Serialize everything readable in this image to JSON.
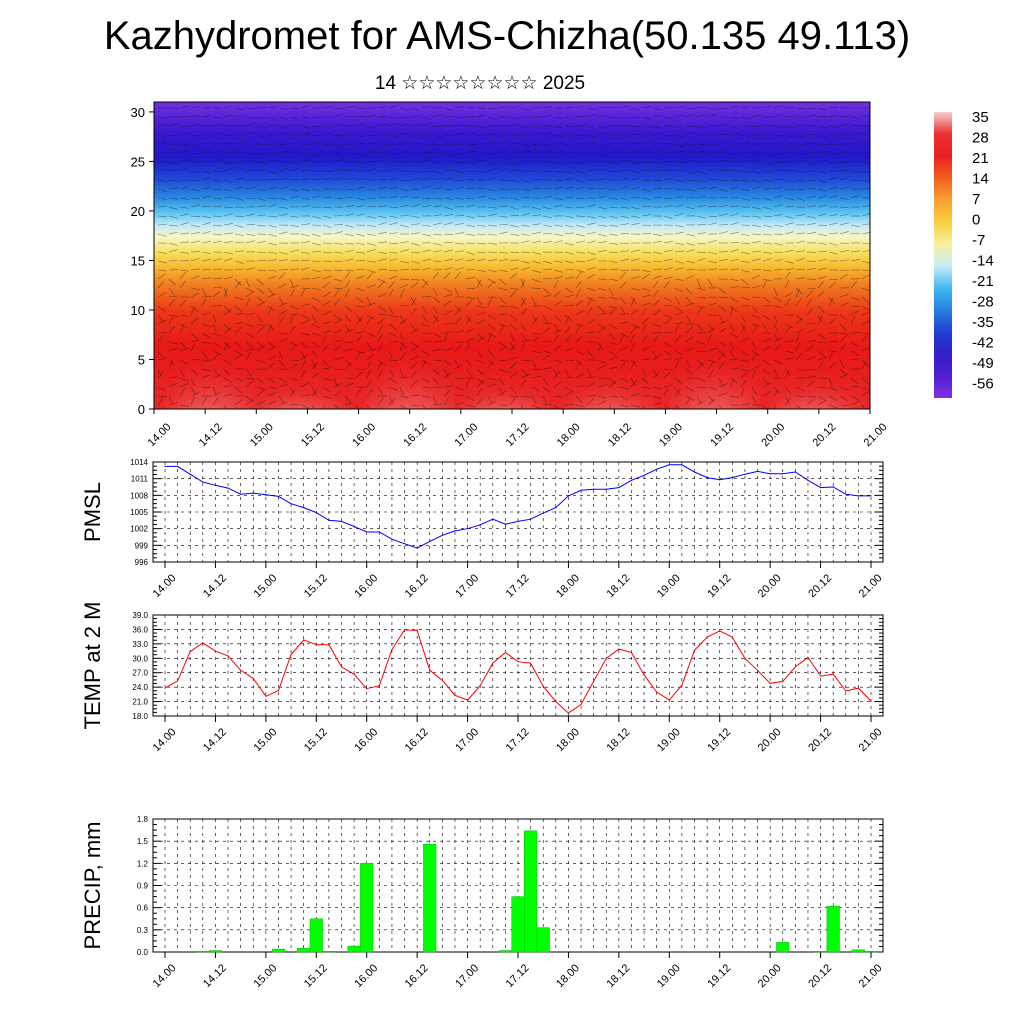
{
  "title": "Kazhydromet for AMS-Chizha(50.135 49.113)",
  "subtitle": "14 ☆☆☆☆☆☆☆☆ 2025",
  "x_tick_labels": [
    "14.00",
    "14.12",
    "15.00",
    "15.12",
    "16.00",
    "16.12",
    "17.00",
    "17.12",
    "18.00",
    "18.12",
    "19.00",
    "19.12",
    "20.00",
    "20.12",
    "21.00"
  ],
  "chart_data": [
    {
      "type": "heatmap",
      "name": "cross-section",
      "ylabel": "",
      "ylim": [
        0,
        31
      ],
      "yticks": [
        0,
        5,
        10,
        15,
        20,
        25,
        30
      ],
      "x_categories": [
        "14.00",
        "14.12",
        "15.00",
        "15.12",
        "16.00",
        "16.12",
        "17.00",
        "17.12",
        "18.00",
        "18.12",
        "19.00",
        "19.12",
        "20.00",
        "20.12",
        "21.00"
      ],
      "colorbar": {
        "labels": [
          "35",
          "28",
          "21",
          "14",
          "7",
          "0",
          "-7",
          "-14",
          "-21",
          "-28",
          "-35",
          "-42",
          "-49",
          "-56"
        ],
        "colors": [
          "#f8d0d0",
          "#e83030",
          "#e82020",
          "#f06020",
          "#f8a030",
          "#f8d040",
          "#f8f0a0",
          "#c8ecf8",
          "#40b8f0",
          "#2880e0",
          "#2040d0",
          "#3020c8",
          "#5020d0",
          "#8030e0"
        ]
      }
    },
    {
      "type": "line",
      "name": "PMSL",
      "ylabel": "PMSL",
      "ylim": [
        996,
        1014
      ],
      "yticks": [
        "996",
        "999",
        "1002",
        "1005",
        "1008",
        "1011",
        "1014"
      ],
      "color": "#0000ff",
      "x": [
        "14.00",
        "14.03",
        "14.06",
        "14.09",
        "14.12",
        "14.15",
        "14.18",
        "14.21",
        "15.00",
        "15.03",
        "15.06",
        "15.09",
        "15.12",
        "15.15",
        "15.18",
        "15.21",
        "16.00",
        "16.03",
        "16.06",
        "16.09",
        "16.12",
        "16.15",
        "16.18",
        "16.21",
        "17.00",
        "17.03",
        "17.06",
        "17.09",
        "17.12",
        "17.15",
        "17.18",
        "17.21",
        "18.00",
        "18.03",
        "18.06",
        "18.09",
        "18.12",
        "18.15",
        "18.18",
        "18.21",
        "19.00",
        "19.03",
        "19.06",
        "19.09",
        "19.12",
        "19.15",
        "19.18",
        "19.21",
        "20.00",
        "20.03",
        "20.06",
        "20.09",
        "20.12",
        "20.15",
        "20.18",
        "20.21",
        "21.00"
      ],
      "values": [
        1013.2,
        1013.2,
        1011.8,
        1010.4,
        1009.8,
        1009.3,
        1008.2,
        1008.4,
        1008.1,
        1007.8,
        1006.5,
        1005.8,
        1004.9,
        1003.5,
        1003.3,
        1002.4,
        1001.4,
        1001.4,
        1000.1,
        999.3,
        998.5,
        999.7,
        1000.8,
        1001.6,
        1002.0,
        1002.7,
        1003.7,
        1002.8,
        1003.3,
        1003.7,
        1004.8,
        1005.8,
        1007.9,
        1008.9,
        1009.1,
        1009.1,
        1009.4,
        1010.7,
        1011.6,
        1012.7,
        1013.5,
        1013.5,
        1012.2,
        1011.2,
        1010.8,
        1011.2,
        1011.8,
        1012.3,
        1011.9,
        1011.9,
        1012.2,
        1010.7,
        1009.4,
        1009.5,
        1008.2,
        1007.9,
        1007.9
      ]
    },
    {
      "type": "line",
      "name": "TEMP at 2 M",
      "ylabel": "TEMP at 2 M",
      "ylim": [
        18,
        39
      ],
      "yticks": [
        "18.0",
        "21.0",
        "24.0",
        "27.0",
        "30.0",
        "33.0",
        "36.0",
        "39.0"
      ],
      "color": "#ff0000",
      "x": [
        "14.00",
        "14.03",
        "14.06",
        "14.09",
        "14.12",
        "14.15",
        "14.18",
        "14.21",
        "15.00",
        "15.03",
        "15.06",
        "15.09",
        "15.12",
        "15.15",
        "15.18",
        "15.21",
        "16.00",
        "16.03",
        "16.06",
        "16.09",
        "16.12",
        "16.15",
        "16.18",
        "16.21",
        "17.00",
        "17.03",
        "17.06",
        "17.09",
        "17.12",
        "17.15",
        "17.18",
        "17.21",
        "18.00",
        "18.03",
        "18.06",
        "18.09",
        "18.12",
        "18.15",
        "18.18",
        "18.21",
        "19.00",
        "19.03",
        "19.06",
        "19.09",
        "19.12",
        "19.15",
        "19.18",
        "19.21",
        "20.00",
        "20.03",
        "20.06",
        "20.09",
        "20.12",
        "20.15",
        "20.18",
        "20.21",
        "21.00"
      ],
      "values": [
        23.8,
        25.3,
        31.4,
        33.2,
        31.5,
        30.5,
        27.5,
        25.8,
        22.1,
        23.3,
        30.8,
        33.8,
        32.8,
        32.8,
        28.2,
        26.7,
        23.7,
        24.3,
        31.8,
        35.9,
        35.8,
        27.5,
        25.4,
        22.3,
        21.3,
        24.3,
        29.0,
        31.2,
        29.3,
        29.0,
        24.2,
        21.0,
        18.6,
        20.4,
        25.2,
        30.0,
        31.9,
        31.2,
        26.5,
        23.0,
        21.3,
        24.4,
        31.7,
        34.4,
        35.7,
        34.4,
        30.0,
        27.5,
        24.8,
        25.2,
        28.2,
        30.2,
        26.3,
        26.7,
        23.2,
        23.8,
        21.1
      ]
    },
    {
      "type": "bar",
      "name": "PRECIP, mm",
      "ylabel": "PRECIP, mm",
      "ylim": [
        0,
        1.8
      ],
      "yticks": [
        "0.0",
        "0.3",
        "0.6",
        "0.9",
        "1.2",
        "1.5",
        "1.8"
      ],
      "color": "#00ff00",
      "x": [
        "14.00",
        "14.03",
        "14.06",
        "14.09",
        "14.12",
        "14.15",
        "14.18",
        "14.21",
        "15.00",
        "15.03",
        "15.06",
        "15.09",
        "15.12",
        "15.15",
        "15.18",
        "15.21",
        "16.00",
        "16.03",
        "16.06",
        "16.09",
        "16.12",
        "16.15",
        "16.18",
        "16.21",
        "17.00",
        "17.03",
        "17.06",
        "17.09",
        "17.12",
        "17.15",
        "17.18",
        "17.21",
        "18.00",
        "18.03",
        "18.06",
        "18.09",
        "18.12",
        "18.15",
        "18.18",
        "18.21",
        "19.00",
        "19.03",
        "19.06",
        "19.09",
        "19.12",
        "19.15",
        "19.18",
        "19.21",
        "20.00",
        "20.03",
        "20.06",
        "20.09",
        "20.12",
        "20.15",
        "20.18",
        "20.21",
        "21.00"
      ],
      "values": [
        0,
        0,
        0,
        0.01,
        0.02,
        0,
        0,
        0,
        0,
        0.04,
        0,
        0.05,
        0.45,
        0.01,
        0,
        0.08,
        1.2,
        0,
        0,
        0,
        0,
        1.46,
        0,
        0,
        0,
        0,
        0,
        0.02,
        0.75,
        1.64,
        0.33,
        0,
        0,
        0,
        0,
        0,
        0,
        0,
        0,
        0,
        0,
        0,
        0,
        0,
        0,
        0,
        0,
        0,
        0,
        0.13,
        0,
        0,
        0.01,
        0.62,
        0,
        0.03,
        0.01
      ]
    }
  ]
}
